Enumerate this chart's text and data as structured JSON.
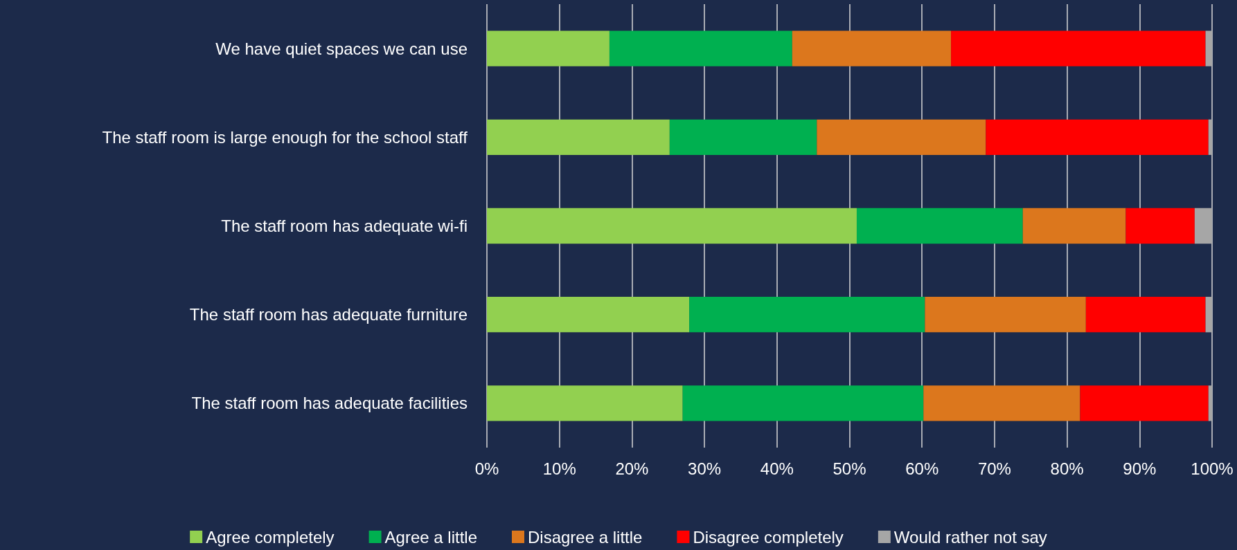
{
  "chart_data": {
    "type": "bar",
    "orientation": "horizontal",
    "stacked": true,
    "categories": [
      "We have quiet spaces we can use",
      "The staff room is large enough for the school staff",
      "The staff room has adequate wi-fi",
      "The staff room has adequate furniture",
      "The staff room has adequate facilities"
    ],
    "series": [
      {
        "name": "Agree completely",
        "color": "#92d050",
        "values": [
          16.9,
          25.2,
          51.0,
          27.9,
          27.0
        ]
      },
      {
        "name": "Agree a little",
        "color": "#00b050",
        "values": [
          25.2,
          20.3,
          22.9,
          32.5,
          33.2
        ]
      },
      {
        "name": "Disagree a little",
        "color": "#dc771d",
        "values": [
          21.9,
          23.3,
          14.2,
          22.2,
          21.6
        ]
      },
      {
        "name": "Disagree completely",
        "color": "#ff0000",
        "values": [
          35.1,
          30.7,
          9.5,
          16.5,
          17.7
        ]
      },
      {
        "name": "Would rather not say",
        "color": "#a6a6a6",
        "values": [
          0.9,
          0.5,
          2.4,
          0.9,
          0.5
        ]
      }
    ],
    "xlim": [
      0,
      100
    ],
    "xticks": [
      {
        "value": 0,
        "label": "0%"
      },
      {
        "value": 10,
        "label": "10%"
      },
      {
        "value": 20,
        "label": "20%"
      },
      {
        "value": 30,
        "label": "30%"
      },
      {
        "value": 40,
        "label": "40%"
      },
      {
        "value": 50,
        "label": "50%"
      },
      {
        "value": 60,
        "label": "60%"
      },
      {
        "value": 70,
        "label": "70%"
      },
      {
        "value": 80,
        "label": "80%"
      },
      {
        "value": 90,
        "label": "90%"
      },
      {
        "value": 100,
        "label": "100%"
      }
    ],
    "grid": "x",
    "legend": "bottom"
  }
}
